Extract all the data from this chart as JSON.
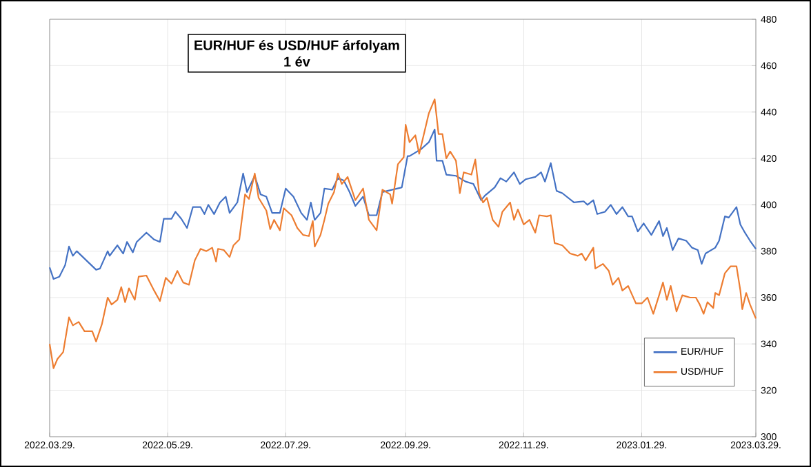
{
  "chart_data": {
    "type": "line",
    "title": "EUR/HUF és USD/HUF árfolyam",
    "subtitle": "1 év",
    "xlim": [
      "2022-03-29",
      "2023-03-29"
    ],
    "xticks": [
      {
        "value": "2022-03-29",
        "label": "2022.03.29."
      },
      {
        "value": "2022-05-29",
        "label": "2022.05.29."
      },
      {
        "value": "2022-07-29",
        "label": "2022.07.29."
      },
      {
        "value": "2022-09-29",
        "label": "2022.09.29."
      },
      {
        "value": "2022-11-29",
        "label": "2022.11.29."
      },
      {
        "value": "2023-01-29",
        "label": "2023.01.29."
      },
      {
        "value": "2023-03-29",
        "label": "2023.03.29."
      }
    ],
    "ylim": [
      300,
      480
    ],
    "yticks": [
      300,
      320,
      340,
      360,
      380,
      400,
      420,
      440,
      460,
      480
    ],
    "grid": true,
    "legend": "bottom right",
    "marker": "none",
    "line_style": "solid",
    "series": [
      {
        "name": "EUR/HUF",
        "color": "#4472c4",
        "x": [
          "2022-03-29",
          "2022-03-31",
          "2022-04-03",
          "2022-04-06",
          "2022-04-08",
          "2022-04-10",
          "2022-04-12",
          "2022-04-17",
          "2022-04-22",
          "2022-04-24",
          "2022-04-28",
          "2022-04-29",
          "2022-05-03",
          "2022-05-06",
          "2022-05-08",
          "2022-05-11",
          "2022-05-13",
          "2022-05-18",
          "2022-05-22",
          "2022-05-25",
          "2022-05-27",
          "2022-05-31",
          "2022-06-02",
          "2022-06-05",
          "2022-06-08",
          "2022-06-11",
          "2022-06-15",
          "2022-06-17",
          "2022-06-19",
          "2022-06-22",
          "2022-06-25",
          "2022-06-28",
          "2022-06-30",
          "2022-07-04",
          "2022-07-07",
          "2022-07-09",
          "2022-07-13",
          "2022-07-16",
          "2022-07-19",
          "2022-07-22",
          "2022-07-26",
          "2022-07-29",
          "2022-08-02",
          "2022-08-06",
          "2022-08-09",
          "2022-08-11",
          "2022-08-13",
          "2022-08-16",
          "2022-08-18",
          "2022-08-22",
          "2022-08-25",
          "2022-08-28",
          "2022-08-31",
          "2022-09-03",
          "2022-09-07",
          "2022-09-10",
          "2022-09-14",
          "2022-09-17",
          "2022-09-22",
          "2022-09-27",
          "2022-09-30",
          "2022-10-01",
          "2022-10-05",
          "2022-10-07",
          "2022-10-11",
          "2022-10-14",
          "2022-10-15",
          "2022-10-18",
          "2022-10-20",
          "2022-10-25",
          "2022-10-30",
          "2022-11-03",
          "2022-11-07",
          "2022-11-09",
          "2022-11-14",
          "2022-11-17",
          "2022-11-20",
          "2022-11-24",
          "2022-11-27",
          "2022-11-30",
          "2022-12-05",
          "2022-12-08",
          "2022-12-10",
          "2022-12-13",
          "2022-12-16",
          "2022-12-19",
          "2022-12-25",
          "2022-12-30",
          "2023-01-01",
          "2023-01-04",
          "2023-01-06",
          "2023-01-10",
          "2023-01-13",
          "2023-01-16",
          "2023-01-19",
          "2023-01-22",
          "2023-01-24",
          "2023-01-27",
          "2023-01-30",
          "2023-02-03",
          "2023-02-07",
          "2023-02-09",
          "2023-02-11",
          "2023-02-14",
          "2023-02-17",
          "2023-02-21",
          "2023-02-24",
          "2023-02-27",
          "2023-03-01",
          "2023-03-03",
          "2023-03-08",
          "2023-03-10",
          "2023-03-13",
          "2023-03-15",
          "2023-03-19",
          "2023-03-21",
          "2023-03-23",
          "2023-03-26",
          "2023-03-29"
        ],
        "values": [
          373,
          368,
          369,
          374,
          382,
          378,
          380,
          376,
          372,
          372.5,
          380,
          378,
          382.5,
          379,
          384,
          379.5,
          384,
          388,
          385,
          384,
          394,
          394,
          397,
          394,
          390,
          399,
          399,
          396,
          400,
          396,
          401,
          403.5,
          396.5,
          401,
          413.5,
          405.5,
          412.5,
          404.5,
          403.5,
          396.5,
          396.5,
          407,
          403.5,
          396.5,
          393.5,
          401,
          393.5,
          396.5,
          407,
          406.5,
          411.5,
          410.5,
          405.5,
          399.5,
          403.5,
          395.5,
          395.5,
          405.5,
          406.5,
          407.5,
          421,
          421,
          423,
          424,
          427,
          432.5,
          419,
          419,
          413,
          412.5,
          410,
          409,
          402,
          404,
          407.5,
          411.5,
          410,
          414,
          409,
          411,
          412,
          414,
          410,
          418,
          406,
          405,
          401,
          401.5,
          400,
          402,
          396,
          397,
          400,
          396,
          399,
          395,
          395,
          388.5,
          392,
          387,
          393,
          386.5,
          390,
          380.5,
          385.5,
          384.5,
          381.5,
          380.5,
          374.5,
          379,
          381.5,
          384.5,
          395,
          394.5,
          399,
          391.5,
          388.5,
          384.5,
          381
        ]
      },
      {
        "name": "USD/HUF",
        "color": "#ed7d31",
        "x": [
          "2022-03-29",
          "2022-03-31",
          "2022-04-02",
          "2022-04-05",
          "2022-04-08",
          "2022-04-10",
          "2022-04-13",
          "2022-04-16",
          "2022-04-20",
          "2022-04-22",
          "2022-04-25",
          "2022-04-28",
          "2022-04-30",
          "2022-05-03",
          "2022-05-05",
          "2022-05-07",
          "2022-05-09",
          "2022-05-12",
          "2022-05-14",
          "2022-05-18",
          "2022-05-22",
          "2022-05-25",
          "2022-05-28",
          "2022-05-31",
          "2022-06-03",
          "2022-06-06",
          "2022-06-09",
          "2022-06-12",
          "2022-06-15",
          "2022-06-18",
          "2022-06-21",
          "2022-06-23",
          "2022-06-24",
          "2022-06-27",
          "2022-06-30",
          "2022-07-02",
          "2022-07-05",
          "2022-07-08",
          "2022-07-10",
          "2022-07-13",
          "2022-07-15",
          "2022-07-19",
          "2022-07-21",
          "2022-07-23",
          "2022-07-26",
          "2022-07-28",
          "2022-08-01",
          "2022-08-04",
          "2022-08-07",
          "2022-08-10",
          "2022-08-12",
          "2022-08-13",
          "2022-08-16",
          "2022-08-18",
          "2022-08-20",
          "2022-08-23",
          "2022-08-25",
          "2022-08-27",
          "2022-08-30",
          "2022-09-03",
          "2022-09-07",
          "2022-09-10",
          "2022-09-14",
          "2022-09-17",
          "2022-09-21",
          "2022-09-22",
          "2022-09-25",
          "2022-09-28",
          "2022-09-29",
          "2022-10-01",
          "2022-10-04",
          "2022-10-06",
          "2022-10-09",
          "2022-10-11",
          "2022-10-14",
          "2022-10-16",
          "2022-10-18",
          "2022-10-20",
          "2022-10-22",
          "2022-10-25",
          "2022-10-27",
          "2022-10-29",
          "2022-11-02",
          "2022-11-04",
          "2022-11-06",
          "2022-11-08",
          "2022-11-10",
          "2022-11-13",
          "2022-11-16",
          "2022-11-18",
          "2022-11-22",
          "2022-11-24",
          "2022-11-26",
          "2022-11-29",
          "2022-12-02",
          "2022-12-05",
          "2022-12-07",
          "2022-12-11",
          "2022-12-13",
          "2022-12-15",
          "2022-12-19",
          "2022-12-23",
          "2022-12-27",
          "2022-12-29",
          "2022-12-31",
          "2023-01-04",
          "2023-01-05",
          "2023-01-09",
          "2023-01-12",
          "2023-01-14",
          "2023-01-17",
          "2023-01-19",
          "2023-01-22",
          "2023-01-26",
          "2023-01-29",
          "2023-02-01",
          "2023-02-04",
          "2023-02-07",
          "2023-02-09",
          "2023-02-11",
          "2023-02-13",
          "2023-02-16",
          "2023-02-19",
          "2023-02-23",
          "2023-02-26",
          "2023-02-28",
          "2023-03-02",
          "2023-03-04",
          "2023-03-07",
          "2023-03-08",
          "2023-03-10",
          "2023-03-13",
          "2023-03-16",
          "2023-03-19",
          "2023-03-21",
          "2023-03-22",
          "2023-03-24",
          "2023-03-26",
          "2023-03-29"
        ],
        "values": [
          340,
          329.5,
          333.5,
          336.5,
          351.5,
          348,
          349.5,
          345.5,
          345.5,
          341,
          348.5,
          360,
          357,
          359,
          364.5,
          358,
          364,
          359,
          369,
          369.5,
          363,
          358.5,
          368.5,
          366,
          371.5,
          366.5,
          365.5,
          376,
          381,
          380,
          381.5,
          375.5,
          381,
          380.5,
          377.5,
          382.5,
          385,
          404.5,
          402.5,
          413.5,
          403,
          397.5,
          389.5,
          393.5,
          389,
          398.5,
          395.5,
          390,
          387,
          386.5,
          393,
          382,
          387,
          393.5,
          400.5,
          405.5,
          413.5,
          409,
          412,
          402,
          407,
          393.5,
          389,
          406.5,
          404.5,
          400.5,
          417.5,
          420.5,
          434.5,
          427,
          430,
          422,
          432.5,
          439.5,
          445.5,
          430.5,
          430.5,
          420,
          423,
          419,
          405,
          414,
          413,
          419.5,
          405,
          401,
          403,
          393.5,
          390.5,
          397,
          401,
          393.5,
          398,
          391.5,
          393.5,
          388,
          395.5,
          395,
          395.5,
          383.5,
          382.5,
          379,
          378,
          379,
          376,
          381.5,
          372.5,
          374.5,
          371.5,
          365.5,
          368.5,
          363,
          365,
          357.5,
          357.5,
          360,
          353,
          361,
          366.5,
          359,
          365,
          354,
          361,
          360,
          360,
          357,
          353,
          358,
          355.5,
          362,
          361,
          370.5,
          373.5,
          373.5,
          363,
          355,
          362,
          357,
          351
        ]
      }
    ]
  }
}
